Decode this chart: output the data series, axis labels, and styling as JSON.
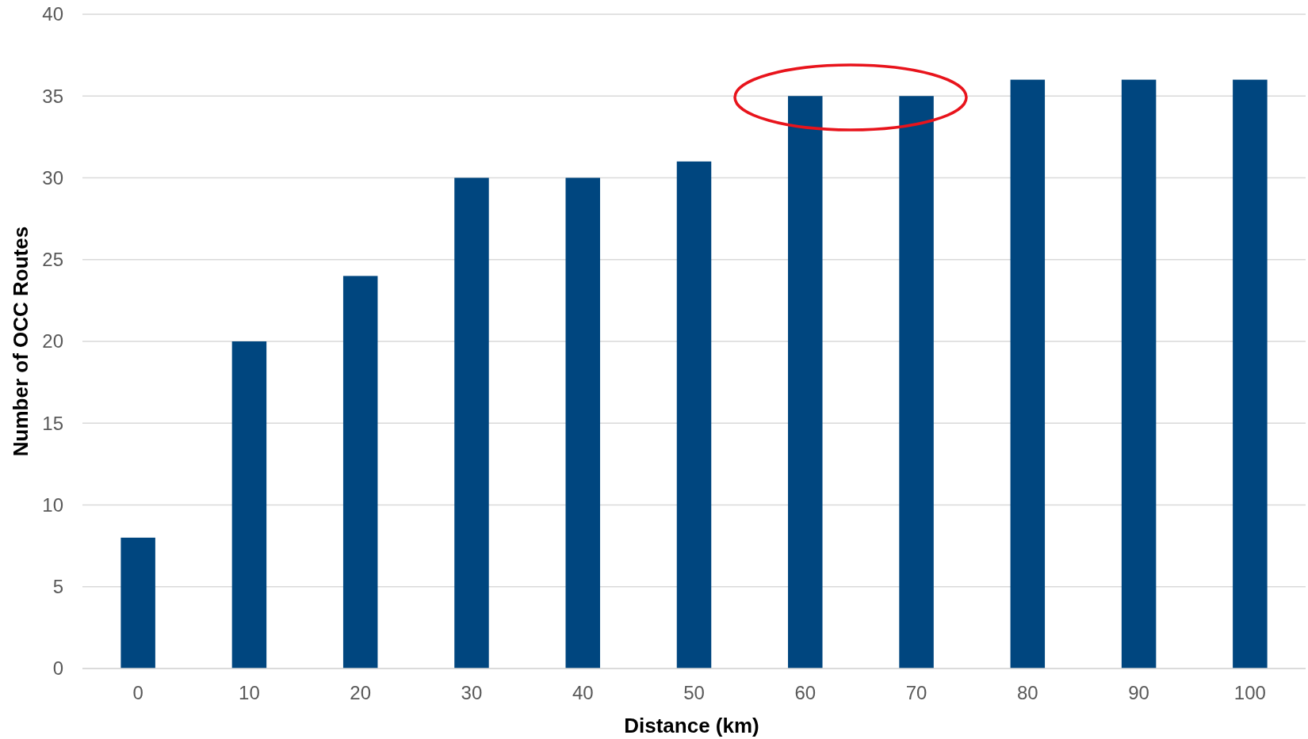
{
  "chart_data": {
    "type": "bar",
    "xlabel": "Distance (km)",
    "ylabel": "Number of OCC Routes",
    "categories": [
      "0",
      "10",
      "20",
      "30",
      "40",
      "50",
      "60",
      "70",
      "80",
      "90",
      "100"
    ],
    "values": [
      8,
      20,
      24,
      30,
      30,
      31,
      35,
      35,
      36,
      36,
      36
    ],
    "color": "#00467f",
    "ylim": [
      0,
      40
    ],
    "yticks": [
      0,
      5,
      10,
      15,
      20,
      25,
      30,
      35,
      40
    ],
    "grid": "y"
  }
}
